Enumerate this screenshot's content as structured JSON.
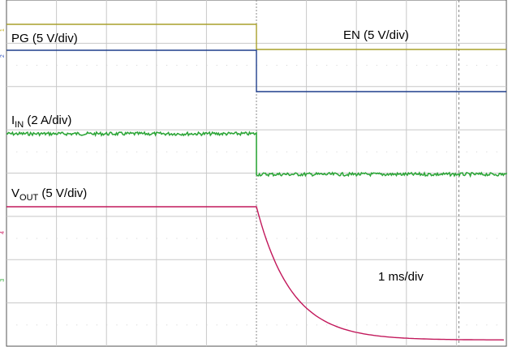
{
  "chart_data": {
    "type": "line",
    "title": "",
    "xlabel": "",
    "ylabel": "",
    "grid": true,
    "divisions": {
      "x": 10,
      "y": 8
    },
    "time_scale": "1 ms/div",
    "x_range_div": [
      0,
      10
    ],
    "trigger_x_div": 5.0,
    "cursor_x_div": 9.05,
    "series": [
      {
        "name": "PG",
        "scale": "5 V/div",
        "color": "#a8a02c",
        "marker_color": "#c8b428",
        "marker_y_div": 0.92,
        "points": [
          [
            0,
            0.95
          ],
          [
            5.0,
            0.95
          ],
          [
            5.0,
            0.0
          ],
          [
            10,
            0.0
          ]
        ]
      },
      {
        "name": "EN",
        "scale": "5 V/div",
        "color": "#1f3f8c",
        "marker_color": "#3a5cc0",
        "marker_y_div": 1.52,
        "points": [
          [
            0,
            1.05
          ],
          [
            5.0,
            1.05
          ],
          [
            5.0,
            0.0
          ],
          [
            10,
            0.0
          ]
        ]
      },
      {
        "name": "I",
        "name_sub": "IN",
        "scale": "2 A/div",
        "color": "#2fa63a",
        "marker_color": "#3ab040",
        "marker_y_div": 6.7,
        "noisy": true,
        "points": [
          [
            0,
            1.67
          ],
          [
            5.0,
            1.67
          ],
          [
            5.0,
            0.1
          ],
          [
            10,
            0.1
          ]
        ]
      },
      {
        "name": "V",
        "name_sub": "OUT",
        "scale": "5 V/div",
        "color": "#c2185b",
        "marker_color": "#d02a6a",
        "marker_y_div": 5.6,
        "decay": {
          "start_x_div": 5.0,
          "start_level": 0.0,
          "end_level": 3.85,
          "tau_div": 0.7
        },
        "points": [
          [
            0,
            0.0
          ],
          [
            5.0,
            0.0
          ]
        ]
      }
    ],
    "annotations": [
      {
        "text": "1 ms/div",
        "anchor": "bottom-right"
      }
    ]
  },
  "labels": {
    "pg": "PG (5 V/div)",
    "en": "EN (5 V/div)",
    "iin_main": "I",
    "iin_sub": "IN",
    "iin_rest": " (2 A/div)",
    "vout_main": "V",
    "vout_sub": "OUT",
    "vout_rest": " (5 V/div)",
    "timebase": "1 ms/div"
  },
  "channel_markers": [
    "1",
    "2",
    "3",
    "4"
  ]
}
